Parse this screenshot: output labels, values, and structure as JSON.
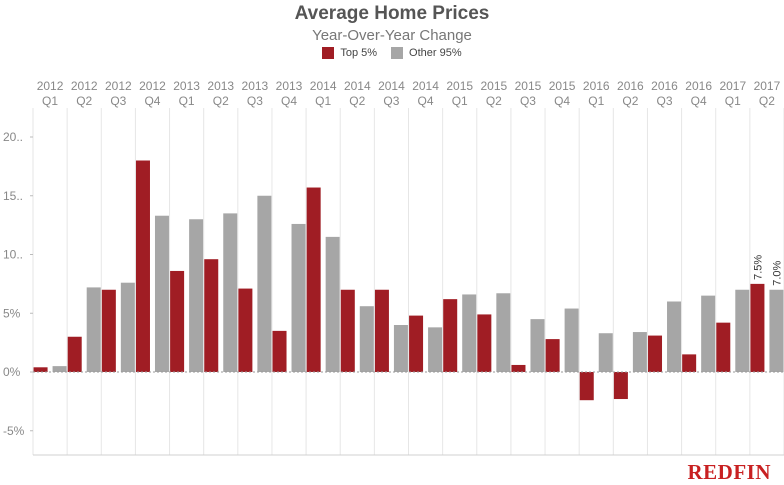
{
  "chart_data": {
    "type": "bar",
    "title": "Average Home Prices",
    "subtitle": "Year-Over-Year Change",
    "xlabel": "",
    "ylabel": "",
    "categories": [
      [
        "2012",
        "Q1"
      ],
      [
        "2012",
        "Q2"
      ],
      [
        "2012",
        "Q3"
      ],
      [
        "2012",
        "Q4"
      ],
      [
        "2013",
        "Q1"
      ],
      [
        "2013",
        "Q2"
      ],
      [
        "2013",
        "Q3"
      ],
      [
        "2013",
        "Q4"
      ],
      [
        "2014",
        "Q1"
      ],
      [
        "2014",
        "Q2"
      ],
      [
        "2014",
        "Q3"
      ],
      [
        "2014",
        "Q4"
      ],
      [
        "2015",
        "Q1"
      ],
      [
        "2015",
        "Q2"
      ],
      [
        "2015",
        "Q3"
      ],
      [
        "2015",
        "Q4"
      ],
      [
        "2016",
        "Q1"
      ],
      [
        "2016",
        "Q2"
      ],
      [
        "2016",
        "Q3"
      ],
      [
        "2016",
        "Q4"
      ],
      [
        "2017",
        "Q1"
      ],
      [
        "2017",
        "Q2"
      ]
    ],
    "series": [
      {
        "name": "Top 5%",
        "color": "#a01d24",
        "values": [
          0.4,
          3.0,
          7.0,
          18.0,
          8.6,
          9.6,
          7.1,
          3.5,
          15.7,
          7.0,
          7.0,
          4.8,
          6.2,
          4.9,
          0.6,
          2.8,
          -2.4,
          -2.3,
          3.1,
          1.5,
          4.2,
          7.5
        ]
      },
      {
        "name": "Other 95%",
        "color": "#a6a6a6",
        "values": [
          0.5,
          7.2,
          7.6,
          13.3,
          13.0,
          13.5,
          15.0,
          12.6,
          11.5,
          5.6,
          4.0,
          3.8,
          6.6,
          6.7,
          4.5,
          5.4,
          3.3,
          3.4,
          6.0,
          6.5,
          7.0,
          7.0
        ]
      }
    ],
    "data_labels": [
      {
        "category_index": 21,
        "series_index": 0,
        "text": "7.5%"
      },
      {
        "category_index": 21,
        "series_index": 1,
        "text": "7.0%"
      }
    ],
    "yticks": [
      {
        "value": 20,
        "label": "20.."
      },
      {
        "value": 15,
        "label": "15.."
      },
      {
        "value": 10,
        "label": "10.."
      },
      {
        "value": 5,
        "label": "5%"
      },
      {
        "value": 0,
        "label": "0%"
      },
      {
        "value": -5,
        "label": "-5%"
      }
    ],
    "ylim": [
      -7,
      23
    ],
    "grid": "vertical",
    "legend_position": "top-center",
    "zero_line_color": "#999999",
    "grid_color": "#e6e6e6"
  },
  "branding": {
    "logo_text": "REDFIN",
    "logo_color": "#c82021"
  }
}
